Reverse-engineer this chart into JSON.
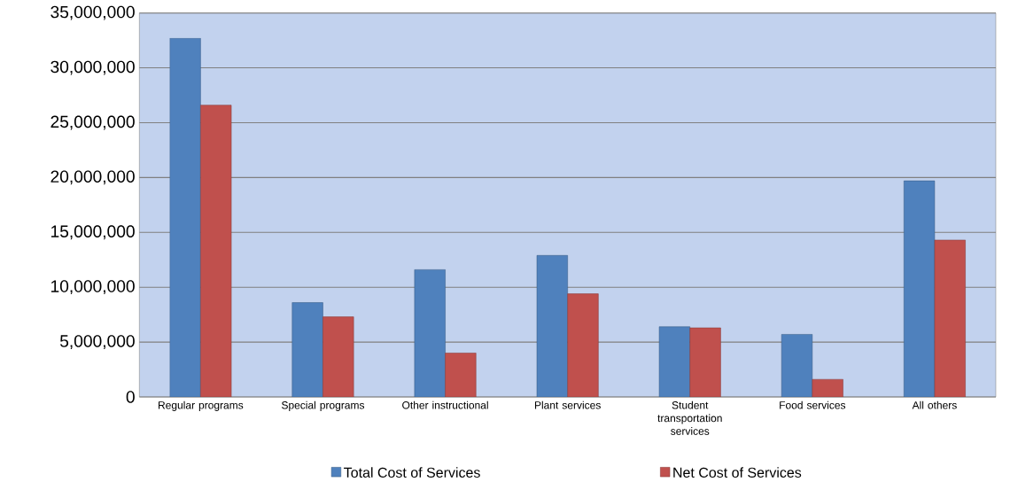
{
  "chart_data": {
    "type": "bar",
    "categories": [
      "Regular programs",
      "Special programs",
      "Other instructional",
      "Plant services",
      "Student transportation services",
      "Food services",
      "All others"
    ],
    "series": [
      {
        "name": "Total Cost of Services",
        "color": "#4f81bd",
        "values": [
          32700000,
          8600000,
          11600000,
          12900000,
          6400000,
          5700000,
          19700000
        ]
      },
      {
        "name": "Net Cost of Services",
        "color": "#c0504d",
        "values": [
          26600000,
          7300000,
          4000000,
          9400000,
          6300000,
          1600000,
          14300000
        ]
      }
    ],
    "ylim": [
      0,
      35000000
    ],
    "yticks": [
      {
        "value": 0,
        "label": "0"
      },
      {
        "value": 5000000,
        "label": "5,000,000"
      },
      {
        "value": 10000000,
        "label": "10,000,000"
      },
      {
        "value": 15000000,
        "label": "15,000,000"
      },
      {
        "value": 20000000,
        "label": "20,000,000"
      },
      {
        "value": 25000000,
        "label": "25,000,000"
      },
      {
        "value": 30000000,
        "label": "30,000,000"
      },
      {
        "value": 35000000,
        "label": "35,000,000"
      }
    ],
    "grid": "y",
    "legend": "bottom"
  }
}
